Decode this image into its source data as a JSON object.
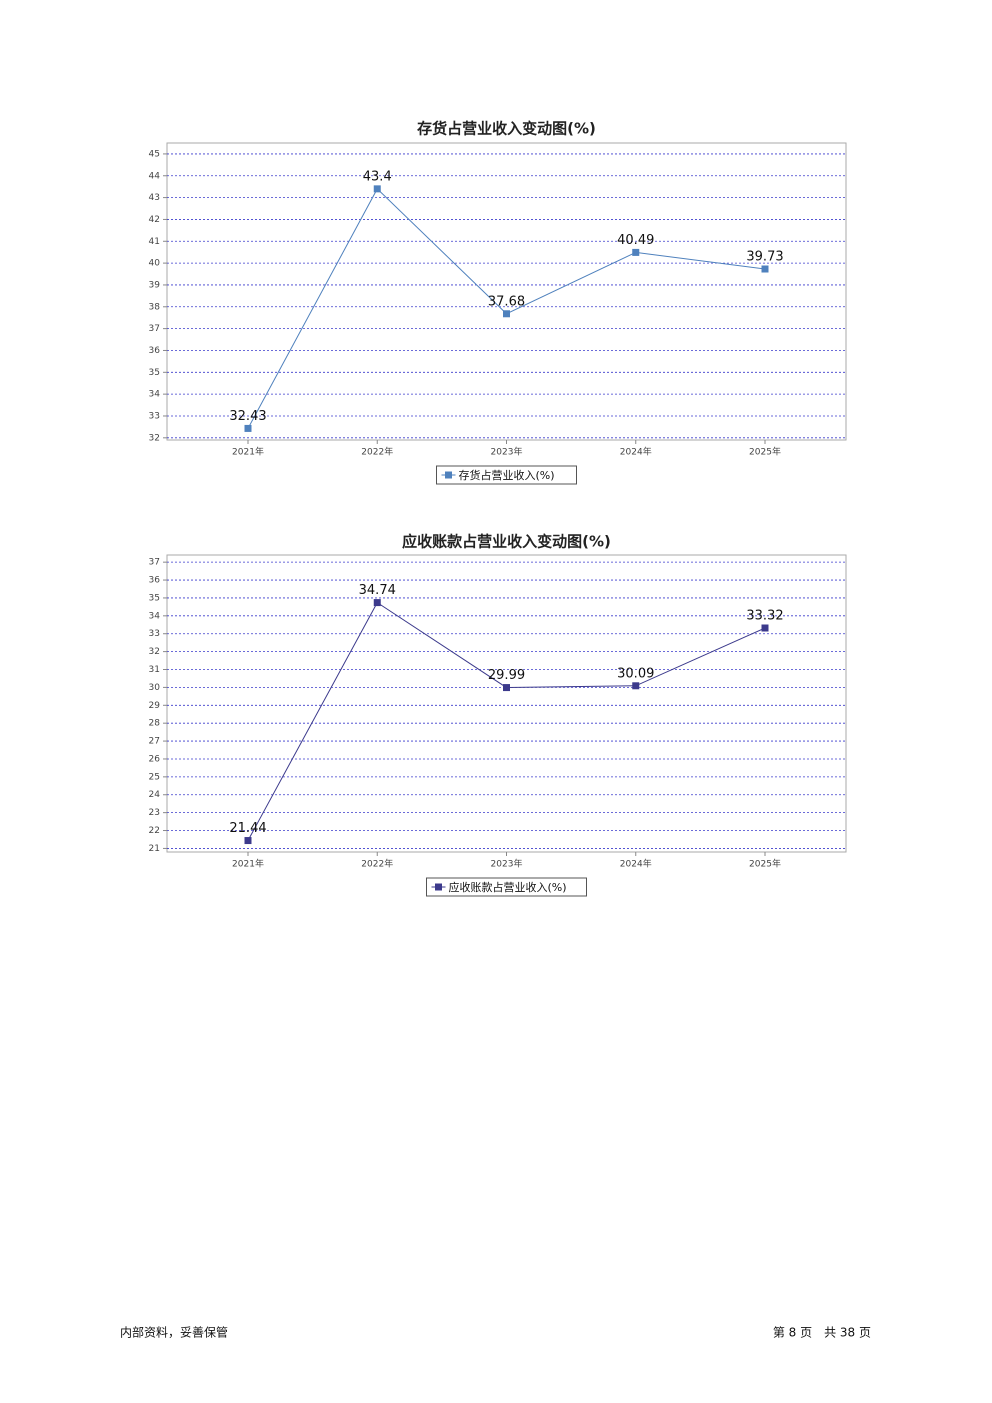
{
  "chart_data": [
    {
      "type": "line",
      "title": "存货占营业收入变动图(%)",
      "categories": [
        "2021年",
        "2022年",
        "2023年",
        "2024年",
        "2025年"
      ],
      "series": [
        {
          "name": "存货占营业收入(%)",
          "color": "#4f81bd",
          "values": [
            32.43,
            43.4,
            37.68,
            40.49,
            39.73
          ]
        }
      ],
      "ylim": [
        31.9,
        45.5
      ],
      "yticks": [
        32,
        33,
        34,
        35,
        36,
        37,
        38,
        39,
        40,
        41,
        42,
        43,
        44,
        45
      ],
      "grid": true,
      "legend": "bottom"
    },
    {
      "type": "line",
      "title": "应收账款占营业收入变动图(%)",
      "categories": [
        "2021年",
        "2022年",
        "2023年",
        "2024年",
        "2025年"
      ],
      "series": [
        {
          "name": "应收账款占营业收入(%)",
          "color": "#3c3a8c",
          "values": [
            21.44,
            34.74,
            29.99,
            30.09,
            33.32
          ]
        }
      ],
      "ylim": [
        20.8,
        37.4
      ],
      "yticks": [
        21,
        22,
        23,
        24,
        25,
        26,
        27,
        28,
        29,
        30,
        31,
        32,
        33,
        34,
        35,
        36,
        37
      ],
      "grid": true,
      "legend": "bottom"
    }
  ],
  "footer": {
    "note": "内部资料，妥善保管",
    "page": "第 8 页　共 38 页"
  }
}
